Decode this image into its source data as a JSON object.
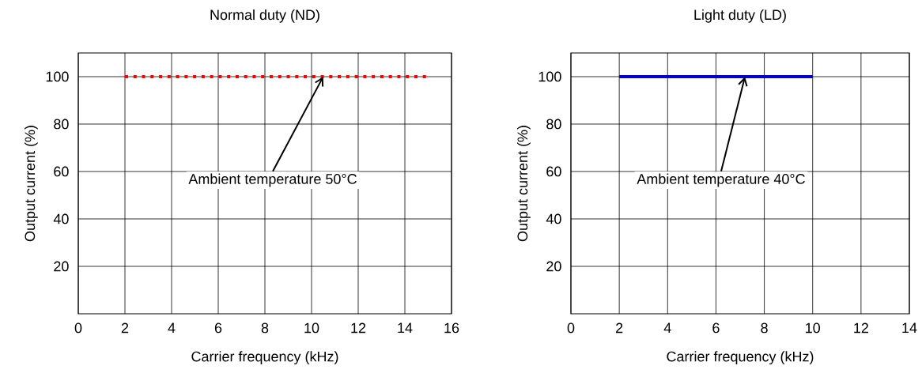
{
  "chart_data": [
    {
      "type": "line",
      "title": "Normal duty (ND)",
      "xlabel": "Carrier frequency (kHz)",
      "ylabel": "Output current (%)",
      "x": [
        2,
        15
      ],
      "series": [
        {
          "color": "#ff0000",
          "values": [
            100,
            100
          ],
          "line_style": "dotted"
        }
      ],
      "xlim": [
        0,
        16
      ],
      "xticks": [
        0,
        2,
        4,
        6,
        8,
        10,
        12,
        14,
        16
      ],
      "ylim": [
        0,
        110
      ],
      "yticks": [
        20,
        40,
        60,
        80,
        100
      ],
      "grid": true,
      "annotations": [
        {
          "text": "Ambient temperature 50°C",
          "x": 10.5,
          "y": 100
        }
      ]
    },
    {
      "type": "line",
      "title": "Light duty (LD)",
      "xlabel": "Carrier frequency (kHz)",
      "ylabel": "Output current (%)",
      "x": [
        2,
        10
      ],
      "series": [
        {
          "color": "#0000cc",
          "values": [
            100,
            100
          ],
          "line_style": "solid"
        }
      ],
      "xlim": [
        0,
        14
      ],
      "xticks": [
        0,
        2,
        4,
        6,
        8,
        10,
        12,
        14
      ],
      "ylim": [
        0,
        110
      ],
      "yticks": [
        20,
        40,
        60,
        80,
        100
      ],
      "grid": true,
      "annotations": [
        {
          "text": "Ambient temperature 40°C",
          "x": 7.2,
          "y": 100
        }
      ]
    }
  ]
}
